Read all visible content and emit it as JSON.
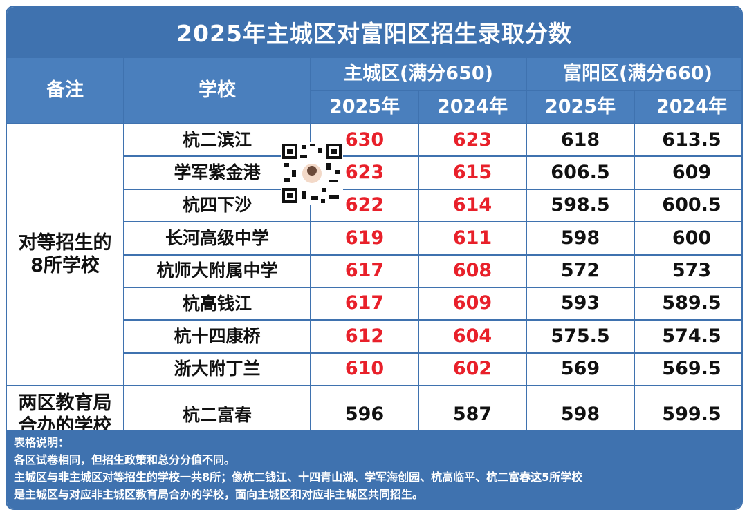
{
  "title": "2025年主城区对富阳区招生录取分数",
  "header": {
    "remark": "备注",
    "school": "学校",
    "main_district": "主城区(满分650)",
    "fuyang_district": "富阳区(满分660)",
    "year_2025": "2025年",
    "year_2024": "2024年"
  },
  "groups": [
    {
      "label": "对等招生的\n8所学校"
    },
    {
      "label": "两区教育局\n合办的学校"
    }
  ],
  "rows": [
    {
      "school": "杭二滨江",
      "main_2025": "630",
      "main_2024": "623",
      "fy_2025": "618",
      "fy_2024": "613.5"
    },
    {
      "school": "学军紫金港",
      "main_2025": "623",
      "main_2024": "615",
      "fy_2025": "606.5",
      "fy_2024": "609"
    },
    {
      "school": "杭四下沙",
      "main_2025": "622",
      "main_2024": "614",
      "fy_2025": "598.5",
      "fy_2024": "600.5"
    },
    {
      "school": "长河高级中学",
      "main_2025": "619",
      "main_2024": "611",
      "fy_2025": "598",
      "fy_2024": "600"
    },
    {
      "school": "杭师大附属中学",
      "main_2025": "617",
      "main_2024": "608",
      "fy_2025": "572",
      "fy_2024": "573"
    },
    {
      "school": "杭高钱江",
      "main_2025": "617",
      "main_2024": "609",
      "fy_2025": "593",
      "fy_2024": "589.5"
    },
    {
      "school": "杭十四康桥",
      "main_2025": "612",
      "main_2024": "604",
      "fy_2025": "575.5",
      "fy_2024": "574.5"
    },
    {
      "school": "浙大附丁兰",
      "main_2025": "610",
      "main_2024": "602",
      "fy_2025": "569",
      "fy_2024": "569.5"
    },
    {
      "school": "杭二富春",
      "main_2025": "596",
      "main_2024": "587",
      "fy_2025": "598",
      "fy_2024": "599.5"
    }
  ],
  "notes": {
    "heading": "表格说明：",
    "lines": [
      "各区试卷相同，但招生政策和总分分值不同。",
      "主城区与非主城区对等招生的学校一共8所；像杭二钱江、十四青山湖、学军海创园、杭高临平、杭二富春这5所学校",
      "是主城区与对应非主城区教育局合办的学校，面向主城区和对应非主城区共同招生。"
    ]
  },
  "colors": {
    "header_blue": "#3f72af",
    "highlight_red": "#e8202a"
  }
}
